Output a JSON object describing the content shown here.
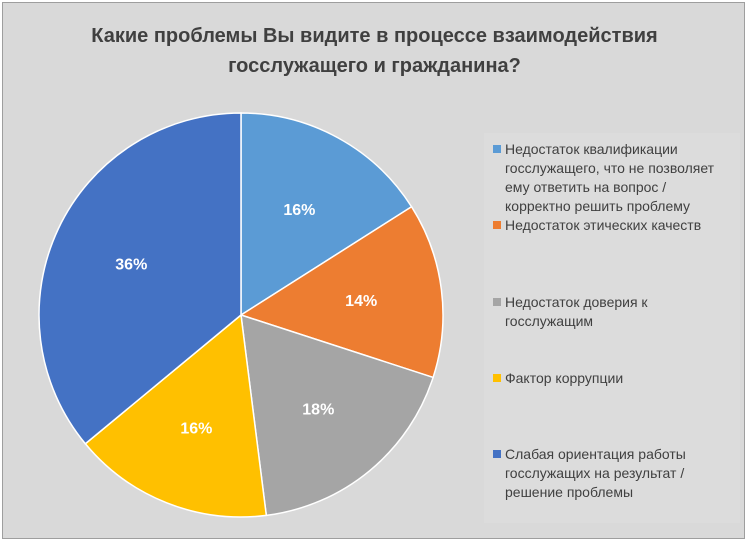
{
  "chart_data": {
    "type": "pie",
    "title_lines": [
      "Какие проблемы Вы видите в процессе взаимодействия",
      "госслужащего и гражданина?"
    ],
    "categories": [
      "Недостаток квалификации госслужащего, что не позволяет ему ответить на вопрос / корректно решить проблему",
      "Недостаток этических качеств",
      "Недостаток доверия к госслужащим",
      "Фактор коррупции",
      "Слабая ориентация работы госслужащих на результат / решение проблемы"
    ],
    "values": [
      16,
      14,
      18,
      16,
      36
    ],
    "labels": [
      "16%",
      "14%",
      "18%",
      "16%",
      "36%"
    ],
    "colors": [
      "#5b9bd5",
      "#ed7d31",
      "#a5a5a5",
      "#ffc000",
      "#4472c4"
    ],
    "legend_position": "right"
  }
}
